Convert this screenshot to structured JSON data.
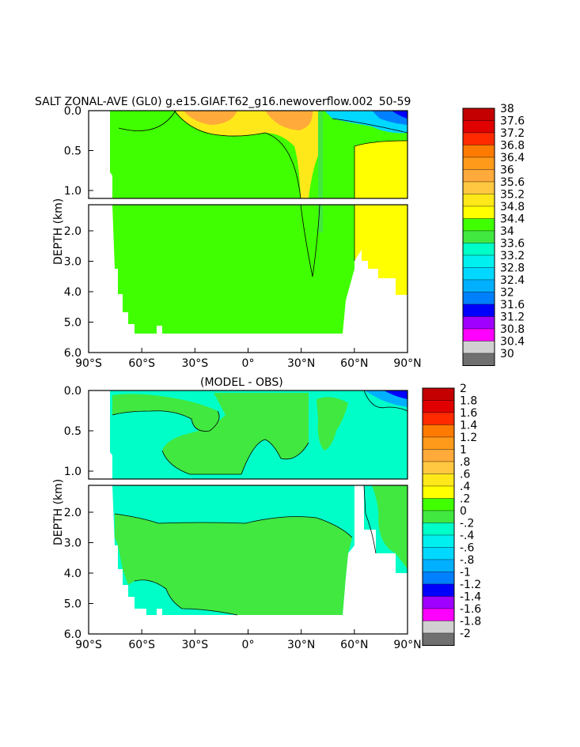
{
  "title": "SALT ZONAL-AVE (GL0) g.e15.GIAF.T62_g16.newoverflow.002  50-59 ",
  "chart_data": [
    {
      "type": "heatmap",
      "title": "SALT ZONAL-AVE (GL0) g.e15.GIAF.T62_g16.newoverflow.002  50-59 ",
      "subtitle": "",
      "ylabel": "DEPTH (km)",
      "xlabel": "",
      "x_ticks": [
        "90°S",
        "60°S",
        "30°S",
        "0°",
        "30°N",
        "60°N",
        "90°N"
      ],
      "y_ticks_upper": [
        "0.0",
        "0.5",
        "1.0"
      ],
      "y_ticks_lower": [
        "2.0",
        "3.0",
        "4.0",
        "5.0",
        "6.0"
      ],
      "colorbar_labels": [
        "38",
        "37.6",
        "37.2",
        "36.8",
        "36.4",
        "36",
        "35.6",
        "35.2",
        "34.8",
        "34.4",
        "34",
        "33.6",
        "33.2",
        "32.8",
        "32.4",
        "32",
        "31.6",
        "31.2",
        "30.8",
        "30.4",
        "30"
      ],
      "colorbar_colors": [
        "#c40000",
        "#e00000",
        "#ff2a00",
        "#ff7a00",
        "#ff9a1a",
        "#ffaa3a",
        "#ffc840",
        "#ffe81a",
        "#ffff00",
        "#40ff00",
        "#40e840",
        "#00ffc8",
        "#00f0f0",
        "#00d8ff",
        "#00b0ff",
        "#0080ff",
        "#0000ff",
        "#a000ff",
        "#ff00ff",
        "#d0d0d0",
        "#707070"
      ]
    },
    {
      "type": "heatmap",
      "title": "(MODEL - OBS)",
      "subtitle": "",
      "ylabel": "DEPTH (km)",
      "xlabel": "",
      "x_ticks": [
        "90°S",
        "60°S",
        "30°S",
        "0°",
        "30°N",
        "60°N",
        "90°N"
      ],
      "y_ticks_upper": [
        "0.0",
        "0.5",
        "1.0"
      ],
      "y_ticks_lower": [
        "2.0",
        "3.0",
        "4.0",
        "5.0",
        "6.0"
      ],
      "colorbar_labels": [
        "2",
        "1.8",
        "1.6",
        "1.4",
        "1.2",
        "1",
        ".8",
        ".6",
        ".4",
        ".2",
        "0",
        "-.2",
        "-.4",
        "-.6",
        "-.8",
        "-1",
        "-1.2",
        "-1.4",
        "-1.6",
        "-1.8",
        "-2"
      ],
      "colorbar_colors": [
        "#c40000",
        "#e00000",
        "#ff2a00",
        "#ff7a00",
        "#ff9a1a",
        "#ffaa3a",
        "#ffc840",
        "#ffe81a",
        "#ffff00",
        "#40ff00",
        "#40e840",
        "#00ffc8",
        "#00f0f0",
        "#00d8ff",
        "#00b0ff",
        "#0080ff",
        "#0000ff",
        "#a000ff",
        "#ff00ff",
        "#d0d0d0",
        "#707070"
      ]
    }
  ]
}
